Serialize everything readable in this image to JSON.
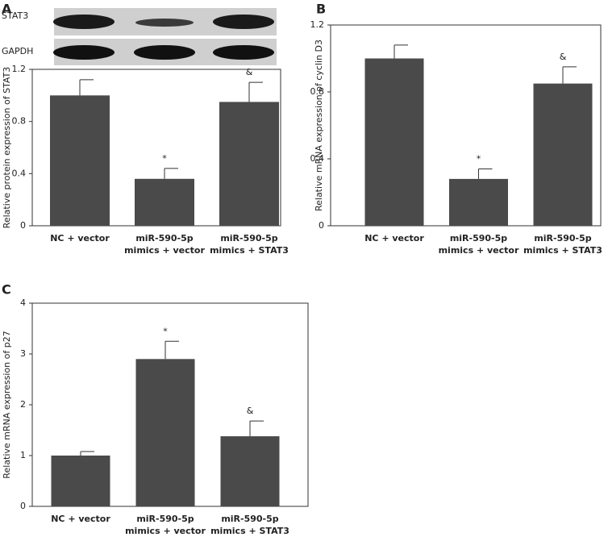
{
  "chart_data": [
    {
      "type": "bar",
      "panel": "A",
      "blot_labels": [
        "STAT3",
        "GAPDH"
      ],
      "y_label": "Relative protein expression of STAT3",
      "categories": [
        "NC + vector",
        "miR-590-5p mimics + vector",
        "miR-590-5p mimics + STAT3"
      ],
      "values": [
        1.0,
        0.36,
        0.95
      ],
      "errors": [
        0.12,
        0.08,
        0.15
      ],
      "annotations": [
        null,
        "*",
        "&"
      ],
      "color": "#4a4a4a",
      "ylim": [
        0,
        1.2
      ],
      "yticks": [
        0,
        0.4,
        0.8,
        1.2
      ]
    },
    {
      "type": "bar",
      "panel": "B",
      "y_label": "Relative mRNA expression of cyclin D3",
      "categories": [
        "NC + vector",
        "miR-590-5p mimics + vector",
        "miR-590-5p mimics + STAT3"
      ],
      "values": [
        1.0,
        0.28,
        0.85
      ],
      "errors": [
        0.08,
        0.06,
        0.1
      ],
      "annotations": [
        null,
        "*",
        "&"
      ],
      "color": "#4a4a4a",
      "ylim": [
        0,
        1.2
      ],
      "yticks": [
        0,
        0.4,
        0.8,
        1.2
      ]
    },
    {
      "type": "bar",
      "panel": "C",
      "y_label": "Relative mRNA expression of p27",
      "categories": [
        "NC + vector",
        "miR-590-5p mimics + vector",
        "miR-590-5p mimics + STAT3"
      ],
      "values": [
        1.0,
        2.9,
        1.38
      ],
      "errors": [
        0.08,
        0.35,
        0.3
      ],
      "annotations": [
        null,
        "*",
        "&"
      ],
      "color": "#4a4a4a",
      "ylim": [
        0,
        4
      ],
      "yticks": [
        0,
        1,
        2,
        3,
        4
      ]
    }
  ]
}
